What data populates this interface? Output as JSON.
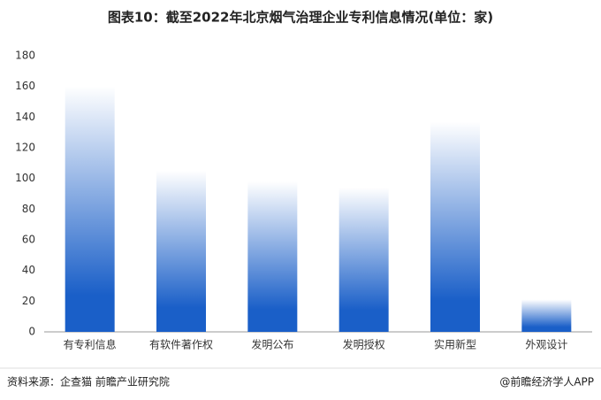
{
  "chart_data": {
    "type": "bar",
    "title": "图表10：截至2022年北京烟气治理企业专利信息情况(单位：家)",
    "categories": [
      "有专利信息",
      "有软件著作权",
      "发明公布",
      "发明授权",
      "实用新型",
      "外观设计"
    ],
    "values": [
      160,
      105,
      98,
      94,
      137,
      21
    ],
    "color": "#1a5fc8",
    "ylim": [
      0,
      180
    ],
    "yticks": [
      0,
      20,
      40,
      60,
      80,
      100,
      120,
      140,
      160,
      180
    ],
    "grid": false,
    "source": "资料来源：企查猫 前瞻产业研究院",
    "credit": "@前瞻经济学人APP"
  }
}
